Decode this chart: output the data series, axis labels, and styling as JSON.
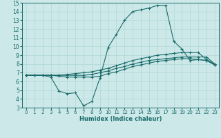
{
  "xlabel": "Humidex (Indice chaleur)",
  "xlim": [
    -0.5,
    23.5
  ],
  "ylim": [
    3,
    15
  ],
  "xticks": [
    0,
    1,
    2,
    3,
    4,
    5,
    6,
    7,
    8,
    9,
    10,
    11,
    12,
    13,
    14,
    15,
    16,
    17,
    18,
    19,
    20,
    21,
    22,
    23
  ],
  "yticks": [
    3,
    4,
    5,
    6,
    7,
    8,
    9,
    10,
    11,
    12,
    13,
    14,
    15
  ],
  "bg_color": "#cce8e8",
  "line_color": "#1a6b6b",
  "grid_color": "#b0d8d8",
  "line1_x": [
    0,
    1,
    2,
    3,
    4,
    5,
    6,
    7,
    8,
    9,
    10,
    11,
    12,
    13,
    14,
    15,
    16,
    17,
    18,
    19,
    20,
    21,
    22,
    23
  ],
  "line1_y": [
    6.7,
    6.7,
    6.7,
    6.5,
    4.9,
    4.6,
    4.7,
    3.2,
    3.7,
    6.4,
    9.9,
    11.4,
    13.0,
    14.0,
    14.2,
    14.4,
    14.7,
    14.7,
    10.6,
    9.7,
    8.4,
    8.5,
    8.4,
    7.9
  ],
  "line2_x": [
    0,
    1,
    2,
    3,
    4,
    5,
    6,
    7,
    8,
    9,
    10,
    11,
    12,
    13,
    14,
    15,
    16,
    17,
    18,
    19,
    20,
    21,
    22,
    23
  ],
  "line2_y": [
    6.7,
    6.7,
    6.7,
    6.7,
    6.7,
    6.7,
    6.7,
    6.7,
    6.8,
    7.0,
    7.2,
    7.5,
    7.7,
    8.0,
    8.2,
    8.4,
    8.5,
    8.6,
    8.7,
    8.8,
    8.8,
    8.8,
    8.8,
    8.0
  ],
  "line3_x": [
    0,
    1,
    2,
    3,
    4,
    5,
    6,
    7,
    8,
    9,
    10,
    11,
    12,
    13,
    14,
    15,
    16,
    17,
    18,
    19,
    20,
    21,
    22,
    23
  ],
  "line3_y": [
    6.7,
    6.7,
    6.7,
    6.7,
    6.7,
    6.8,
    6.9,
    7.0,
    7.1,
    7.3,
    7.5,
    7.8,
    8.1,
    8.4,
    8.6,
    8.8,
    9.0,
    9.1,
    9.2,
    9.3,
    9.3,
    9.3,
    8.5,
    8.0
  ],
  "line4_x": [
    0,
    1,
    2,
    3,
    4,
    5,
    6,
    7,
    8,
    9,
    10,
    11,
    12,
    13,
    14,
    15,
    16,
    17,
    18,
    19,
    20,
    21,
    22,
    23
  ],
  "line4_y": [
    6.7,
    6.7,
    6.7,
    6.7,
    6.6,
    6.5,
    6.5,
    6.5,
    6.5,
    6.6,
    6.9,
    7.1,
    7.4,
    7.7,
    7.9,
    8.1,
    8.3,
    8.4,
    8.5,
    8.6,
    8.6,
    8.5,
    8.4,
    7.9
  ],
  "xtick_fontsize": 5.0,
  "ytick_fontsize": 5.5,
  "xlabel_fontsize": 6.0
}
